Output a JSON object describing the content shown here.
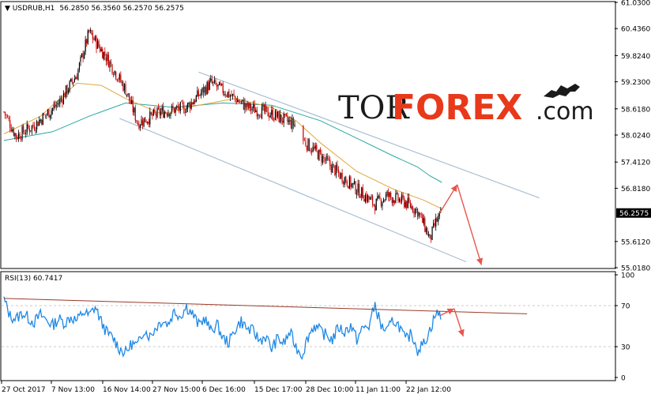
{
  "header": {
    "symbol": "USDRUB,H1",
    "ohlc": "56.2850 56.3560 56.2570 56.2575",
    "rsi_label": "RSI(13) 60.7417"
  },
  "watermark": {
    "part1": "TOR",
    "part2": "FOREX",
    "part3": ".com",
    "icon": "bull-bear-icon"
  },
  "colors": {
    "candle_up": "#000000",
    "candle_down": "#cc0000",
    "ma_fast": "#e0a63a",
    "ma_slow": "#2aa8a0",
    "channel": "#a9bfd3",
    "forecast_arrow": "#e8554a",
    "rsi_line": "#1e88e5",
    "rsi_trend": "#9a3b2a",
    "current_price_box": "#000000"
  },
  "chart_data": [
    {
      "type": "candlestick",
      "title": "USDRUB,H1",
      "x_tick_labels": [
        "27 Oct 2017",
        "7 Nov 13:00",
        "16 Nov 14:00",
        "27 Nov 15:00",
        "6 Dec 16:00",
        "15 Dec 17:00",
        "28 Dec 10:00",
        "11 Jan 11:00",
        "22 Jan 12:00"
      ],
      "y_tick_labels": [
        "61.0300",
        "60.4360",
        "59.8240",
        "59.2300",
        "58.6180",
        "58.0240",
        "57.4120",
        "56.8180",
        "56.2575",
        "55.6120",
        "55.0180"
      ],
      "ylim": [
        55.018,
        61.03
      ],
      "current_price": "56.2575",
      "price_path": [
        {
          "x": 0,
          "y": 58.55
        },
        {
          "x": 2,
          "y": 58.0
        },
        {
          "x": 5,
          "y": 58.25
        },
        {
          "x": 9,
          "y": 58.75
        },
        {
          "x": 12,
          "y": 59.4
        },
        {
          "x": 14,
          "y": 60.35
        },
        {
          "x": 17,
          "y": 59.75
        },
        {
          "x": 20,
          "y": 59.05
        },
        {
          "x": 22,
          "y": 58.3
        },
        {
          "x": 26,
          "y": 58.55
        },
        {
          "x": 30,
          "y": 58.65
        },
        {
          "x": 34,
          "y": 59.2
        },
        {
          "x": 37,
          "y": 58.95
        },
        {
          "x": 40,
          "y": 58.65
        },
        {
          "x": 44,
          "y": 58.5
        },
        {
          "x": 47,
          "y": 58.3
        },
        {
          "x": 48,
          "y": 58.25
        },
        {
          "x": 49.2,
          "y": 57.9
        },
        {
          "x": 52,
          "y": 57.55
        },
        {
          "x": 55,
          "y": 57.15
        },
        {
          "x": 58,
          "y": 56.8
        },
        {
          "x": 61,
          "y": 56.45
        },
        {
          "x": 63,
          "y": 56.65
        },
        {
          "x": 66,
          "y": 56.5
        },
        {
          "x": 68,
          "y": 56.3
        },
        {
          "x": 69.5,
          "y": 55.85
        },
        {
          "x": 70,
          "y": 55.65
        },
        {
          "x": 71,
          "y": 56.05
        },
        {
          "x": 72,
          "y": 56.2575
        }
      ],
      "gaps_after_x": [
        48
      ],
      "ma_fast_path": [
        {
          "x": 0,
          "y": 58.05
        },
        {
          "x": 6,
          "y": 58.45
        },
        {
          "x": 12,
          "y": 59.2
        },
        {
          "x": 16,
          "y": 59.15
        },
        {
          "x": 20,
          "y": 58.85
        },
        {
          "x": 26,
          "y": 58.5
        },
        {
          "x": 32,
          "y": 58.7
        },
        {
          "x": 38,
          "y": 58.85
        },
        {
          "x": 44,
          "y": 58.65
        },
        {
          "x": 48,
          "y": 58.35
        },
        {
          "x": 52,
          "y": 57.85
        },
        {
          "x": 58,
          "y": 57.2
        },
        {
          "x": 64,
          "y": 56.8
        },
        {
          "x": 69,
          "y": 56.55
        },
        {
          "x": 72,
          "y": 56.35
        }
      ],
      "ma_slow_path": [
        {
          "x": 0,
          "y": 57.9
        },
        {
          "x": 8,
          "y": 58.1
        },
        {
          "x": 14,
          "y": 58.45
        },
        {
          "x": 20,
          "y": 58.75
        },
        {
          "x": 28,
          "y": 58.65
        },
        {
          "x": 36,
          "y": 58.75
        },
        {
          "x": 44,
          "y": 58.7
        },
        {
          "x": 52,
          "y": 58.35
        },
        {
          "x": 58,
          "y": 57.95
        },
        {
          "x": 64,
          "y": 57.55
        },
        {
          "x": 68,
          "y": 57.3
        },
        {
          "x": 70,
          "y": 57.1
        },
        {
          "x": 72,
          "y": 56.95
        }
      ],
      "channel_upper": [
        {
          "x": 32,
          "y": 59.45
        },
        {
          "x": 88,
          "y": 56.6
        }
      ],
      "channel_lower": [
        {
          "x": 19,
          "y": 58.4
        },
        {
          "x": 76,
          "y": 55.15
        }
      ],
      "forecast_path": [
        {
          "x": 71.6,
          "y": 56.25
        },
        {
          "x": 74.5,
          "y": 56.9
        },
        {
          "x": 78.5,
          "y": 55.08
        }
      ],
      "grid": false,
      "legend": "none"
    },
    {
      "type": "line",
      "title": "RSI(13) 60.7417",
      "y_tick_labels": [
        "100",
        "70",
        "30",
        "0"
      ],
      "ylim": [
        0,
        100
      ],
      "x_range": [
        0,
        72
      ],
      "series": [
        {
          "name": "RSI(13)",
          "y": [
            76,
            60,
            57,
            63,
            58,
            54,
            61,
            56,
            51,
            57,
            53,
            59,
            55,
            64,
            60,
            69,
            54,
            43,
            38,
            28,
            24,
            33,
            31,
            47,
            40,
            49,
            56,
            52,
            65,
            60,
            69,
            62,
            51,
            58,
            45,
            52,
            38,
            34,
            47,
            55,
            47,
            45,
            36,
            40,
            28,
            38,
            33,
            44,
            30,
            22,
            40,
            51,
            45,
            41,
            37,
            49,
            44,
            51,
            37,
            48,
            50,
            71,
            50,
            45,
            56,
            50,
            36,
            43,
            27,
            33,
            46,
            62,
            61
          ]
        }
      ],
      "trendline": [
        {
          "x": 0,
          "y": 77
        },
        {
          "x": 86,
          "y": 62
        }
      ],
      "forecast_path": [
        {
          "x": 71.6,
          "y": 60
        },
        {
          "x": 74,
          "y": 67
        },
        {
          "x": 75.5,
          "y": 40
        }
      ],
      "grid": false,
      "legend": "none"
    }
  ]
}
